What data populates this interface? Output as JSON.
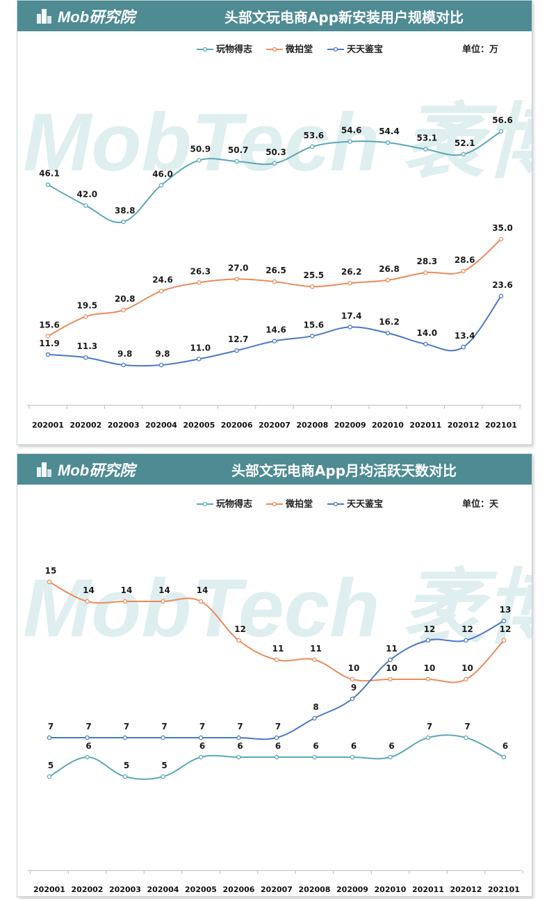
{
  "colors": {
    "header_bg": "#4e8b93",
    "wanwu": "#5aa8b6",
    "weipaitang": "#ec8a5c",
    "tiantian": "#4a78c4",
    "watermark": "#dfeeee"
  },
  "logo": {
    "text": "Mob研究院"
  },
  "watermark": {
    "text": "MobTech 袤博"
  },
  "chart_data": [
    {
      "type": "line",
      "title": "头部文玩电商App新安装用户规模对比",
      "unit_label": "单位：万",
      "categories": [
        "202001",
        "202002",
        "202003",
        "202004",
        "202005",
        "202006",
        "202007",
        "202008",
        "202009",
        "202010",
        "202011",
        "202012",
        "202101"
      ],
      "series": [
        {
          "name": "玩物得志",
          "color_key": "wanwu",
          "values": [
            46.1,
            42.0,
            38.8,
            46.0,
            50.9,
            50.7,
            50.3,
            53.6,
            54.6,
            54.4,
            53.1,
            52.1,
            56.6
          ]
        },
        {
          "name": "微拍堂",
          "color_key": "weipaitang",
          "values": [
            15.6,
            19.5,
            20.8,
            24.6,
            26.3,
            27.0,
            26.5,
            25.5,
            26.2,
            26.8,
            28.3,
            28.6,
            35.0
          ]
        },
        {
          "name": "天天鉴宝",
          "color_key": "tiantian",
          "values": [
            11.9,
            11.3,
            9.8,
            9.8,
            11.0,
            12.7,
            14.6,
            15.6,
            17.4,
            16.2,
            14.0,
            13.4,
            23.6
          ]
        }
      ],
      "ylim": [
        0,
        60
      ],
      "grid": false,
      "legend_position": "top"
    },
    {
      "type": "line",
      "title": "头部文玩电商App月均活跃天数对比",
      "unit_label": "单位：天",
      "categories": [
        "202001",
        "202002",
        "202003",
        "202004",
        "202005",
        "202006",
        "202007",
        "202008",
        "202009",
        "202010",
        "202011",
        "202012",
        "202101"
      ],
      "series": [
        {
          "name": "玩物得志",
          "color_key": "wanwu",
          "values": [
            5,
            6,
            5,
            5,
            6,
            6,
            6,
            6,
            6,
            6,
            7,
            7,
            6
          ]
        },
        {
          "name": "微拍堂",
          "color_key": "weipaitang",
          "values": [
            15,
            14,
            14,
            14,
            14,
            12,
            11,
            11,
            10,
            10,
            10,
            10,
            12
          ]
        },
        {
          "name": "天天鉴宝",
          "color_key": "tiantian",
          "values": [
            7,
            7,
            7,
            7,
            7,
            7,
            7,
            8,
            9,
            11,
            12,
            12,
            13
          ]
        }
      ],
      "ylim": [
        0,
        16
      ],
      "grid": false,
      "legend_position": "top"
    }
  ]
}
